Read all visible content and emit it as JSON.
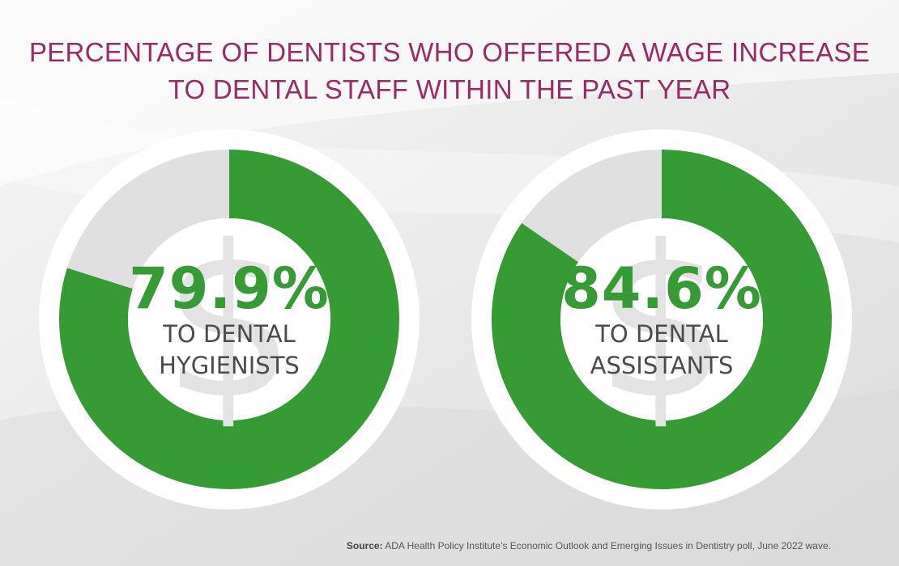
{
  "title_lines": [
    "PERCENTAGE OF DENTISTS WHO OFFERED A WAGE INCREASE",
    "TO DENTAL STAFF WITHIN THE PAST YEAR"
  ],
  "colors": {
    "title": "#9b2a67",
    "fill": "#369b34",
    "remainder": "#e0e0e0",
    "ring_bg": "#ffffff",
    "label": "#4b4b4b"
  },
  "icon": "dollar-sign-icon",
  "chart_data": [
    {
      "type": "pie",
      "value_label": "79.9%",
      "label_lines": [
        "TO DENTAL",
        "HYGIENISTS"
      ],
      "values": [
        79.9,
        20.1
      ],
      "categories": [
        "",
        ""
      ]
    },
    {
      "type": "pie",
      "value_label": "84.6%",
      "label_lines": [
        "TO DENTAL",
        "ASSISTANTS"
      ],
      "values": [
        84.6,
        15.4
      ],
      "categories": [
        "",
        ""
      ]
    }
  ],
  "source": {
    "prefix": "Source:",
    "text": " ADA Health Policy Institute’s Economic Outlook and Emerging Issues in Dentistry poll, June 2022 wave."
  }
}
